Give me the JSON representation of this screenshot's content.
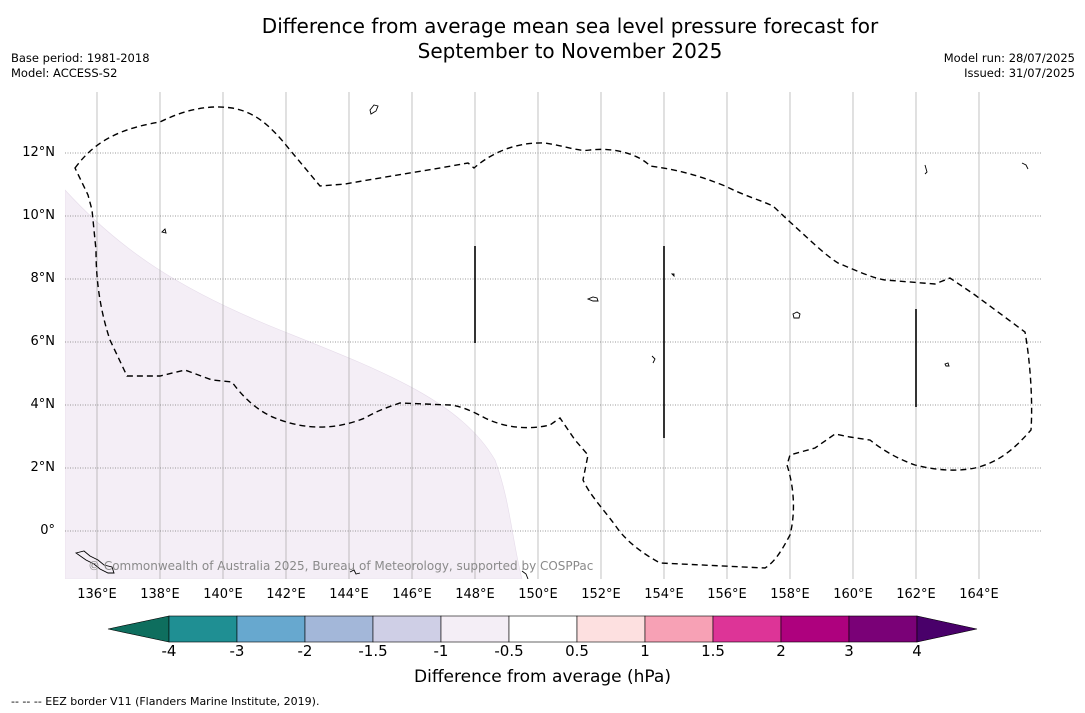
{
  "title": {
    "line1": "Difference from average mean sea level pressure forecast for",
    "line2": "September to November 2025"
  },
  "meta_left": {
    "base_period": "Base period: 1981-2018",
    "model": "Model: ACCESS-S2"
  },
  "meta_right": {
    "model_run": "Model run: 28/07/2025",
    "issued": "Issued: 31/07/2025"
  },
  "latitude_labels": [
    "12°N",
    "10°N",
    "8°N",
    "6°N",
    "4°N",
    "2°N",
    "0°"
  ],
  "longitude_labels": [
    "136°E",
    "138°E",
    "140°E",
    "142°E",
    "144°E",
    "146°E",
    "148°E",
    "150°E",
    "152°E",
    "154°E",
    "156°E",
    "158°E",
    "160°E",
    "162°E",
    "164°E"
  ],
  "copyright": "© Commonwealth of Australia 2025, Bureau of Meteorology, supported by COSPPac",
  "colorbar": {
    "title": "Difference from average (hPa)",
    "tick_labels": [
      "-4",
      "-3",
      "-2",
      "-1.5",
      "-1",
      "-0.5",
      "0.5",
      "1",
      "1.5",
      "2",
      "3",
      "4"
    ],
    "colors": [
      "#0e6e5e",
      "#1f8f93",
      "#67a8cf",
      "#a3b7d9",
      "#cfcfe6",
      "#f4eef6",
      "#ffffff",
      "#fde0e0",
      "#f7a1b5",
      "#dd3497",
      "#ae017e",
      "#7a0177",
      "#49006a"
    ]
  },
  "map": {
    "shaded_region_value": "-0.5 to -1 hPa",
    "shaded_color": "#f4eef6",
    "eez_border_style": "dashed"
  },
  "footnote": "--  --  -- EEZ border V11 (Flanders Marine Institute, 2019)."
}
